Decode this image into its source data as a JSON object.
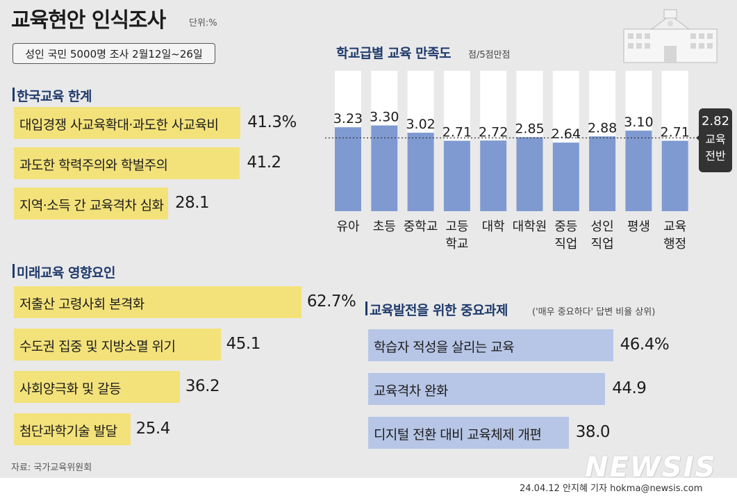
{
  "header": {
    "title": "교육현안 인식조사",
    "unit": "단위:%",
    "survey": "성인 국민 5000명 조사 2월12일~26일"
  },
  "limits": {
    "title": "한국교육 한계",
    "items": [
      {
        "label": "대입경쟁 사교육확대·과도한 사교육비",
        "value": "41.3%",
        "pct": 41.3
      },
      {
        "label": "과도한 학력주의와 학벌주의",
        "value": "41.2",
        "pct": 41.2
      },
      {
        "label": "지역·소득 간 교육격차 심화",
        "value": "28.1",
        "pct": 28.1
      }
    ]
  },
  "future": {
    "title": "미래교육 영향요인",
    "items": [
      {
        "label": "저출산 고령사회 본격화",
        "value": "62.7%",
        "pct": 62.7
      },
      {
        "label": "수도권 집중 및 지방소멸 위기",
        "value": "45.1",
        "pct": 45.1
      },
      {
        "label": "사회양극화 및 갈등",
        "value": "36.2",
        "pct": 36.2
      },
      {
        "label": "첨단과학기술 발달",
        "value": "25.4",
        "pct": 25.4
      }
    ]
  },
  "tasks": {
    "title": "교육발전을 위한 중요과제",
    "subtitle": "('매우 중요하다' 답변 비율 상위)",
    "items": [
      {
        "label": "학습자 적성을 살리는 교육",
        "value": "46.4%",
        "pct": 46.4
      },
      {
        "label": "교육격차 완화",
        "value": "44.9",
        "pct": 44.9
      },
      {
        "label": "디지털 전환 대비 교육체제 개편",
        "value": "38.0",
        "pct": 38.0
      }
    ]
  },
  "chart_data": {
    "type": "bar",
    "title": "학교급별 교육 만족도",
    "subtitle": "점/5점만점",
    "ylim": [
      0,
      5
    ],
    "categories": [
      [
        "유아"
      ],
      [
        "초등"
      ],
      [
        "중학교"
      ],
      [
        "고등",
        "학교"
      ],
      [
        "대학"
      ],
      [
        "대학원"
      ],
      [
        "중등",
        "직업"
      ],
      [
        "성인",
        "직업"
      ],
      [
        "평생"
      ],
      [
        "교육",
        "행정"
      ]
    ],
    "values": [
      3.23,
      3.3,
      3.02,
      2.71,
      2.72,
      2.85,
      2.64,
      2.88,
      3.1,
      2.71
    ],
    "value_labels": [
      "3.23",
      "3.30",
      "3.02",
      "2.71",
      "2.72",
      "2.85",
      "2.64",
      "2.88",
      "3.10",
      "2.71"
    ],
    "reference": {
      "value": 2.82,
      "label": "2.82",
      "caption": [
        "교육",
        "전반"
      ]
    },
    "colors": {
      "bar": "#7f9ad0",
      "track": "#ffffff",
      "badge": "#333333"
    }
  },
  "footer": {
    "source": "자료: 국가교육위원회",
    "byline": "24.04.12 안지혜 기자 hokma@newsis.com",
    "logo": "NEWSIS"
  }
}
